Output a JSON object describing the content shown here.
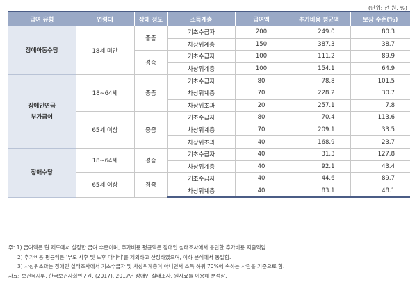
{
  "unit_label": "(단위: 천 원, %)",
  "headers": [
    "급여 유형",
    "연령대",
    "장애 정도",
    "소득계층",
    "급여액",
    "추가비용 평균액",
    "보장 수준(%)"
  ],
  "groups": [
    {
      "type": "장애아동수당",
      "age": "18세 미만",
      "severity_mild": "경증",
      "severity_severe": "중증"
    },
    {
      "type": "장애인연금 부가급여",
      "age1": "18~64세",
      "age2": "65세 이상",
      "severity": "중증"
    },
    {
      "type": "장애수당",
      "age1": "18~64세",
      "age2": "65세 이상",
      "severity": "경증"
    }
  ],
  "rows": [
    {
      "income": "기초수급자",
      "benefit": "200",
      "avg_cost": "249.0",
      "coverage": "80.3"
    },
    {
      "income": "차상위계층",
      "benefit": "150",
      "avg_cost": "387.3",
      "coverage": "38.7"
    },
    {
      "income": "기초수급자",
      "benefit": "100",
      "avg_cost": "111.2",
      "coverage": "89.9"
    },
    {
      "income": "차상위계층",
      "benefit": "100",
      "avg_cost": "154.1",
      "coverage": "64.9"
    },
    {
      "income": "기초수급자",
      "benefit": "80",
      "avg_cost": "78.8",
      "coverage": "101.5"
    },
    {
      "income": "차상위계층",
      "benefit": "70",
      "avg_cost": "228.2",
      "coverage": "30.7"
    },
    {
      "income": "차상위초과",
      "benefit": "20",
      "avg_cost": "257.1",
      "coverage": "7.8"
    },
    {
      "income": "기초수급자",
      "benefit": "80",
      "avg_cost": "70.4",
      "coverage": "113.6"
    },
    {
      "income": "차상위계층",
      "benefit": "70",
      "avg_cost": "209.1",
      "coverage": "33.5"
    },
    {
      "income": "차상위초과",
      "benefit": "40",
      "avg_cost": "168.9",
      "coverage": "23.7"
    },
    {
      "income": "기초수급자",
      "benefit": "40",
      "avg_cost": "31.3",
      "coverage": "127.8"
    },
    {
      "income": "차상위계층",
      "benefit": "40",
      "avg_cost": "92.1",
      "coverage": "43.4"
    },
    {
      "income": "기초수급자",
      "benefit": "40",
      "avg_cost": "44.6",
      "coverage": "89.7"
    },
    {
      "income": "차상위계층",
      "benefit": "40",
      "avg_cost": "83.1",
      "coverage": "48.1"
    }
  ],
  "notes": [
    "주: 1) 급여액은 현 제도에서 설정한 급여 수준이며, 추가비용 평균액은 장애인 실태조사에서 응답한 추가비용 지출액임.",
    "2) 추가비용 평균액은 '부모 사후 및 노후 대비비'를 제외하고 산정하였으며, 이하 분석에서 동일함.",
    "3) 차상위초과는 장애인 실태조사에서 기초수급자 및 차상위계층이 아니면서 소득 하위 70%에 속하는 사람을 기준으로 함.",
    "자료: 보건복지부, 한국보건사회연구원. (2017). 2017년 장애인 실태조사. 원자료를 이용해 분석함."
  ],
  "colors": {
    "header_bg": "#9aa9c6",
    "header_border": "#4b5d86",
    "type_bg": "#e3e8f1"
  }
}
